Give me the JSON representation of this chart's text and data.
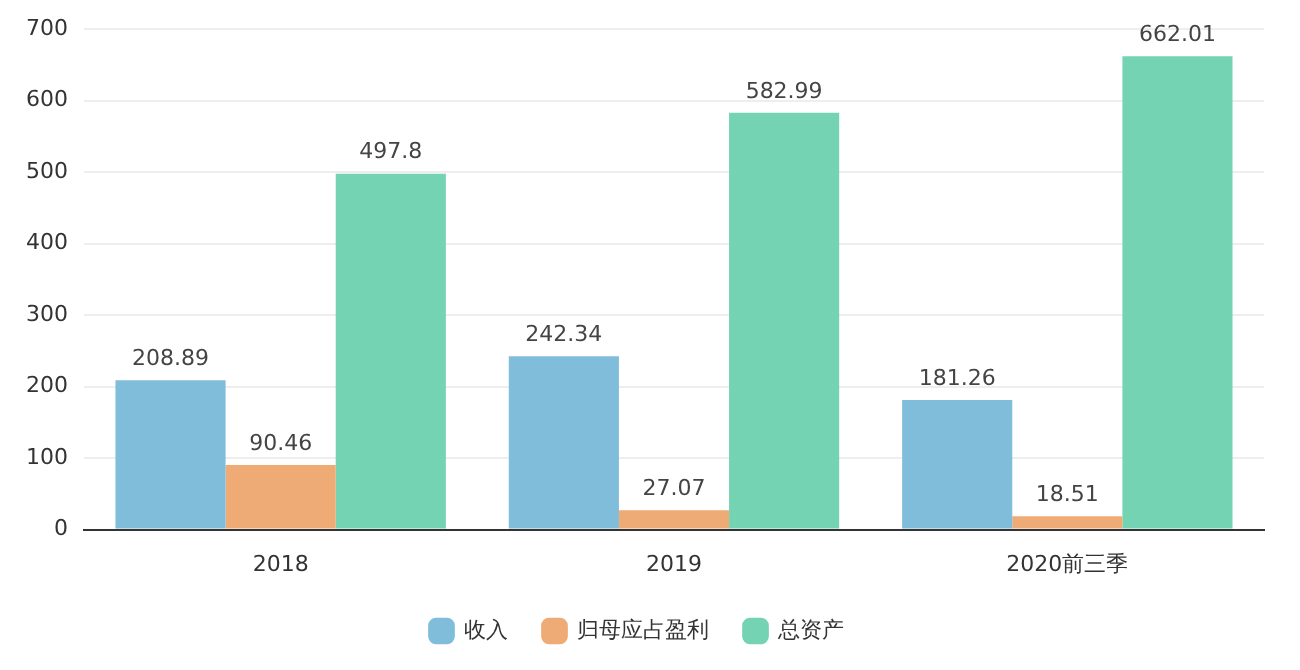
{
  "chart_data": {
    "type": "bar",
    "categories": [
      "2018",
      "2019",
      "2020前三季"
    ],
    "series": [
      {
        "name": "收入",
        "color": "#80bddb",
        "values": [
          208.89,
          242.34,
          181.26
        ]
      },
      {
        "name": "归母应占盈利",
        "color": "#eeab75",
        "values": [
          90.46,
          27.07,
          18.51
        ]
      },
      {
        "name": "总资产",
        "color": "#74d3b3",
        "values": [
          497.8,
          582.99,
          662.01
        ]
      }
    ],
    "ylim": [
      0,
      700
    ],
    "yticks": [
      0,
      100,
      200,
      300,
      400,
      500,
      600,
      700
    ],
    "grid": "y",
    "legend": "bottom",
    "data_labels": true
  }
}
